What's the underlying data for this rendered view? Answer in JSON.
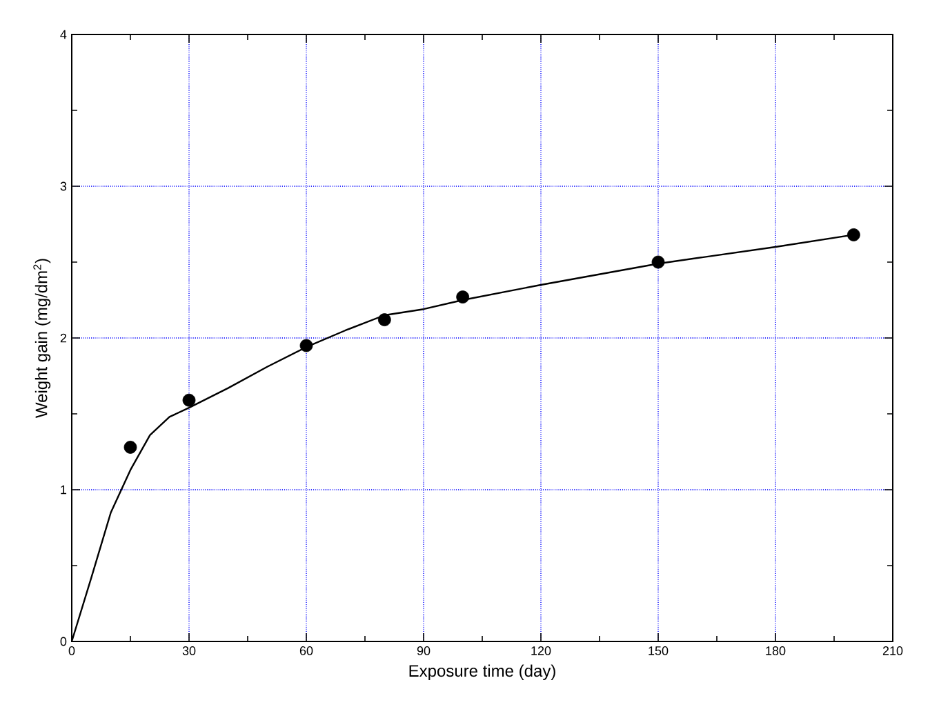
{
  "chart_data": {
    "type": "scatter",
    "xlabel": "Exposure time (day)",
    "ylabel": "Weight gain (mg/dm$^{2}$)",
    "xlim": [
      0,
      210
    ],
    "ylim": [
      0,
      4
    ],
    "xticks": [
      0,
      30,
      60,
      90,
      120,
      150,
      180,
      210
    ],
    "yticks": [
      0,
      1,
      2,
      3,
      4
    ],
    "grid": true,
    "series": [
      {
        "color": "#000000",
        "marker": "circle",
        "x": [
          15,
          30,
          60,
          80,
          100,
          150,
          200
        ],
        "values": [
          1.28,
          1.59,
          1.95,
          2.12,
          2.27,
          2.5,
          2.68
        ]
      },
      {
        "type": "line",
        "color": "#000000",
        "marker": "none",
        "line_style": "solid",
        "x": [
          0,
          5,
          10,
          15,
          20,
          25,
          30,
          40,
          50,
          60,
          70,
          80,
          90,
          100,
          120,
          150,
          180,
          200
        ],
        "values": [
          0,
          0.42,
          0.85,
          1.13,
          1.36,
          1.48,
          1.54,
          1.67,
          1.81,
          1.94,
          2.05,
          2.15,
          2.19,
          2.25,
          2.35,
          2.49,
          2.6,
          2.68
        ]
      }
    ]
  }
}
